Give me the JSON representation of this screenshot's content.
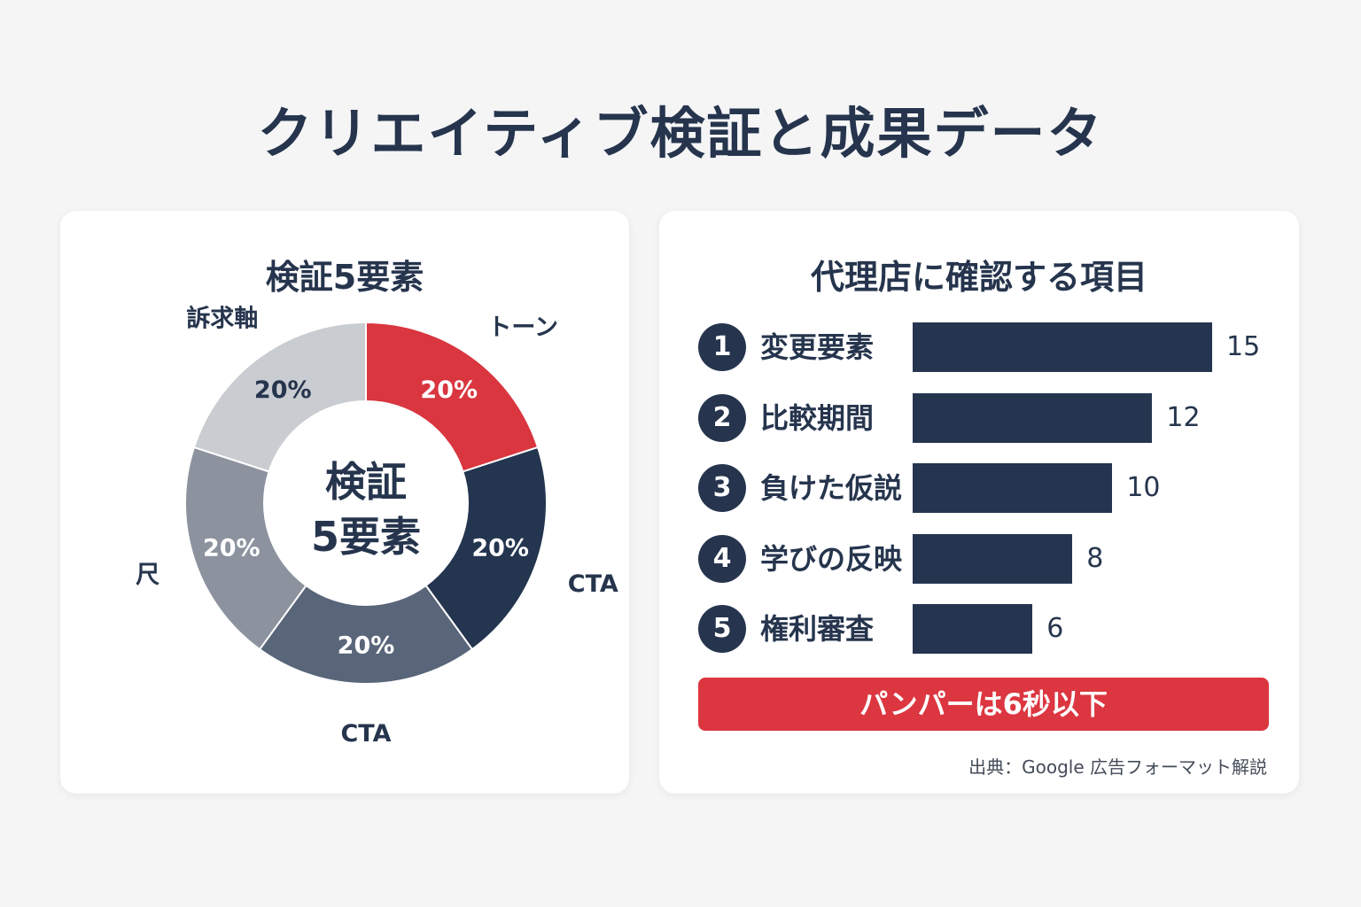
{
  "page_title": "クリエイティブ検証と成果データ",
  "left_panel": {
    "title": "検証5要素",
    "center_label_line1": "検証",
    "center_label_line2": "5要素"
  },
  "right_panel": {
    "title": "代理店に確認する項目",
    "banner": "パンパーは6秒以下",
    "source": "出典：Google 広告フォーマット解説"
  },
  "chart_data": [
    {
      "type": "pie",
      "title": "検証5要素",
      "slices": [
        {
          "label": "トーン",
          "value": 20,
          "value_label": "20%",
          "color": "#d9363f"
        },
        {
          "label": "CTA",
          "value": 20,
          "value_label": "20%",
          "color": "#24354f"
        },
        {
          "label": "CTA",
          "value": 20,
          "value_label": "20%",
          "color": "#596579"
        },
        {
          "label": "尺",
          "value": 20,
          "value_label": "20%",
          "color": "#8c939f"
        },
        {
          "label": "訴求軸",
          "value": 20,
          "value_label": "20%",
          "color": "#c9ccd1"
        }
      ]
    },
    {
      "type": "bar",
      "orientation": "horizontal",
      "title": "代理店に確認する項目",
      "categories": [
        "変更要素",
        "比較期間",
        "負けた仮説",
        "学びの反映",
        "権利審査"
      ],
      "numbers": [
        "1",
        "2",
        "3",
        "4",
        "5"
      ],
      "values": [
        15,
        12,
        10,
        8,
        6
      ],
      "xlim": [
        0,
        15
      ],
      "color": "#25354f"
    }
  ]
}
